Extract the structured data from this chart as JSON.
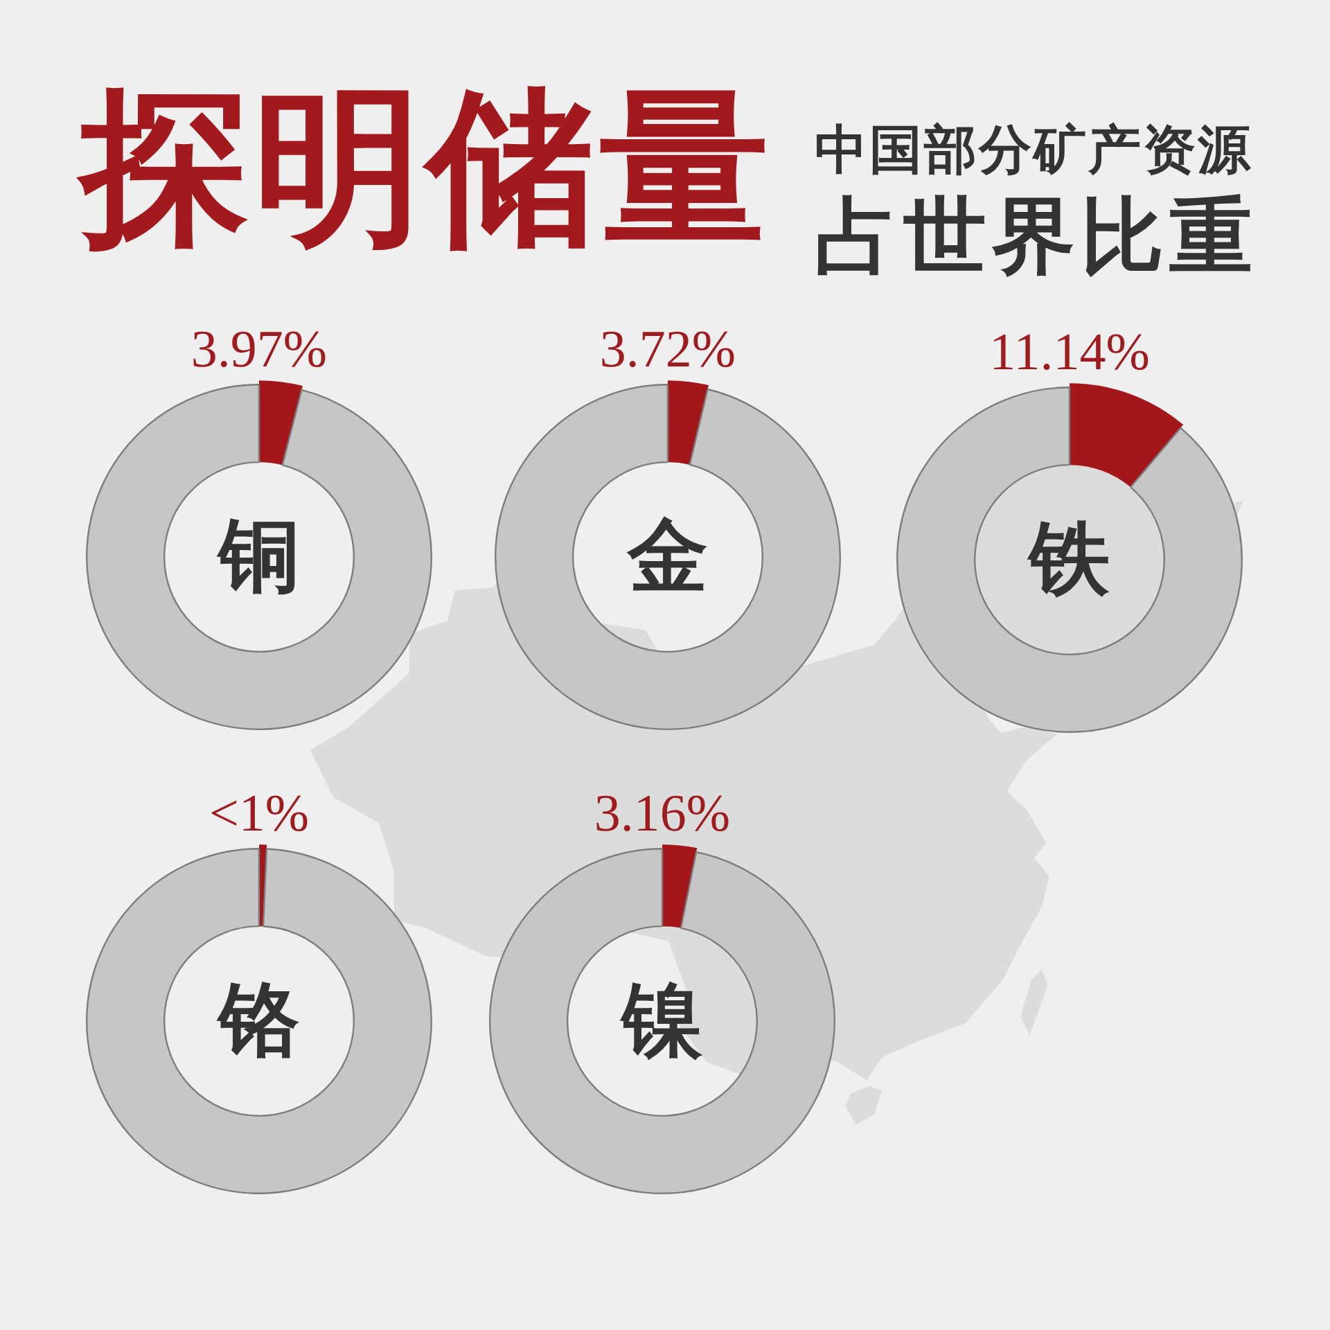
{
  "chart_data": [
    {
      "type": "other",
      "title": "探明储量",
      "subtitle": "中国部分矿产资源占世界比重"
    },
    {
      "type": "donut",
      "title": "铜",
      "categories": [
        null,
        null
      ],
      "values": [
        3.97,
        96.03
      ],
      "colors": [
        "#a3171b",
        "#c6c6c6"
      ],
      "value_labels": [
        "3.97%",
        null
      ]
    },
    {
      "type": "donut",
      "title": "金",
      "categories": [
        null,
        null
      ],
      "values": [
        3.72,
        96.28
      ],
      "colors": [
        "#a3171b",
        "#c6c6c6"
      ],
      "value_labels": [
        "3.72%",
        null
      ]
    },
    {
      "type": "donut",
      "title": "铁",
      "categories": [
        null,
        null
      ],
      "values": [
        11.14,
        88.86
      ],
      "colors": [
        "#a3171b",
        "#c6c6c6"
      ],
      "value_labels": [
        "11.14%",
        null
      ]
    },
    {
      "type": "donut",
      "title": "铬",
      "categories": [
        null,
        null
      ],
      "values": [
        0.7,
        99.3
      ],
      "colors": [
        "#a3171b",
        "#c6c6c6"
      ],
      "value_labels": [
        "<1%",
        null
      ]
    },
    {
      "type": "donut",
      "title": "镍",
      "categories": [
        null,
        null
      ],
      "values": [
        3.16,
        96.84
      ],
      "colors": [
        "#a3171b",
        "#c6c6c6"
      ],
      "value_labels": [
        "3.16%",
        null
      ]
    }
  ]
}
